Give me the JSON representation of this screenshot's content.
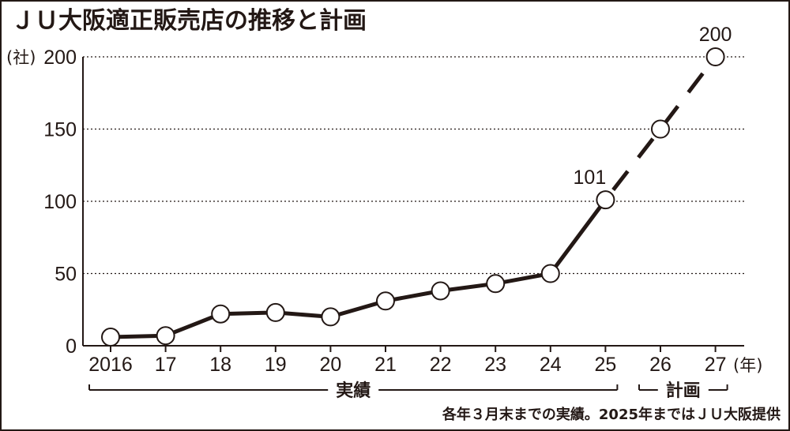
{
  "chart_data": {
    "type": "line",
    "title": "ＪＵ大阪適正販売店の推移と計画",
    "y_unit": "(社)",
    "x_unit": "(年)",
    "categories": [
      "2016",
      "17",
      "18",
      "19",
      "20",
      "21",
      "22",
      "23",
      "24",
      "25",
      "26",
      "27"
    ],
    "series": [
      {
        "style": "solid",
        "values": [
          6,
          7,
          22,
          23,
          20,
          31,
          38,
          43,
          50,
          101,
          null,
          null
        ]
      },
      {
        "style": "dashed",
        "values": [
          null,
          null,
          null,
          null,
          null,
          null,
          null,
          null,
          null,
          101,
          150,
          200
        ]
      }
    ],
    "data_labels": [
      {
        "index": 9,
        "text": "101"
      },
      {
        "index": 11,
        "text": "200"
      }
    ],
    "yticks": [
      "0",
      "50",
      "100",
      "150",
      "200"
    ],
    "ylim": [
      0,
      200
    ],
    "grid": "horizontal dotted",
    "brackets": [
      {
        "label": "実績",
        "from": 0,
        "to": 9
      },
      {
        "label": "計画",
        "from": 10,
        "to": 11
      }
    ],
    "footnote": "各年３月末までの実績。2025年まではＪＵ大阪提供",
    "colors": {
      "ink": "#231815",
      "marker_fill": "#ffffff"
    }
  }
}
